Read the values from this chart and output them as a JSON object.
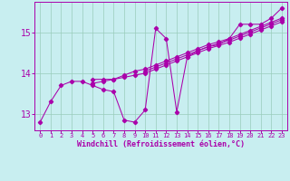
{
  "xlabel": "Windchill (Refroidissement éolien,°C)",
  "bg_color": "#c8eef0",
  "line_color": "#aa00aa",
  "grid_color": "#99ccbb",
  "xlim": [
    -0.5,
    23.5
  ],
  "ylim": [
    12.6,
    15.75
  ],
  "yticks": [
    13,
    14,
    15
  ],
  "xticks": [
    0,
    1,
    2,
    3,
    4,
    5,
    6,
    7,
    8,
    9,
    10,
    11,
    12,
    13,
    14,
    15,
    16,
    17,
    18,
    19,
    20,
    21,
    22,
    23
  ],
  "series": [
    [
      12.8,
      13.3,
      13.7,
      13.8,
      13.8,
      13.7,
      13.6,
      13.55,
      12.85,
      12.8,
      13.1,
      15.1,
      14.85,
      13.05,
      14.4,
      14.55,
      14.65,
      14.7,
      14.85,
      15.2,
      15.2,
      15.2,
      15.35,
      15.6
    ],
    [
      null,
      null,
      null,
      null,
      null,
      13.85,
      13.85,
      13.85,
      13.95,
      14.05,
      14.1,
      14.2,
      14.3,
      14.4,
      14.5,
      14.6,
      14.7,
      14.77,
      14.85,
      14.95,
      15.05,
      15.15,
      15.25,
      15.35
    ],
    [
      null,
      null,
      null,
      null,
      null,
      13.75,
      13.8,
      13.85,
      13.9,
      13.95,
      14.0,
      14.1,
      14.2,
      14.3,
      14.4,
      14.5,
      14.6,
      14.68,
      14.76,
      14.86,
      14.96,
      15.06,
      15.16,
      15.26
    ],
    [
      null,
      null,
      null,
      null,
      null,
      null,
      null,
      null,
      null,
      null,
      14.05,
      14.15,
      14.25,
      14.35,
      14.45,
      14.55,
      14.65,
      14.73,
      14.81,
      14.91,
      15.01,
      15.11,
      15.21,
      15.31
    ]
  ]
}
